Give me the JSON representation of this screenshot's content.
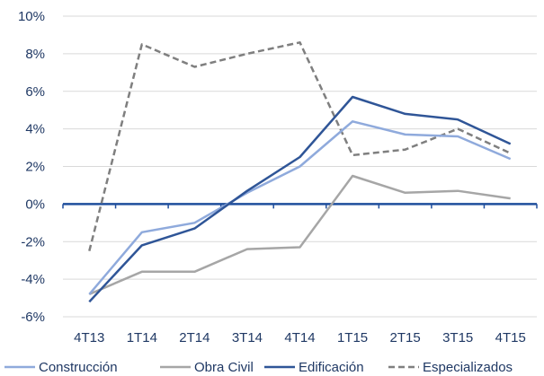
{
  "chart_data": {
    "type": "line",
    "title": "",
    "xlabel": "",
    "ylabel": "",
    "categories": [
      "4T13",
      "1T14",
      "2T14",
      "3T14",
      "4T14",
      "1T15",
      "2T15",
      "3T15",
      "4T15"
    ],
    "ylim": [
      -6,
      10
    ],
    "yticks": [
      -6,
      -4,
      -2,
      0,
      2,
      4,
      6,
      8,
      10
    ],
    "ytick_labels": [
      "-6%",
      "-4%",
      "-2%",
      "0%",
      "2%",
      "4%",
      "6%",
      "8%",
      "10%"
    ],
    "grid": true,
    "legend_position": "bottom",
    "series": [
      {
        "name": "Construcción",
        "color": "#8faadc",
        "dash": "solid",
        "values": [
          -4.8,
          -1.5,
          -1.0,
          0.6,
          2.0,
          4.4,
          3.7,
          3.6,
          2.4
        ]
      },
      {
        "name": "Obra Civil",
        "color": "#a6a6a6",
        "dash": "solid",
        "values": [
          -4.8,
          -3.6,
          -3.6,
          -2.4,
          -2.3,
          1.5,
          0.6,
          0.7,
          0.3
        ]
      },
      {
        "name": "Edificación",
        "color": "#2f5597",
        "dash": "solid",
        "values": [
          -5.2,
          -2.2,
          -1.3,
          0.7,
          2.5,
          5.7,
          4.8,
          4.5,
          3.2
        ]
      },
      {
        "name": "Especializados",
        "color": "#7f7f7f",
        "dash": "dashed",
        "values": [
          -2.5,
          8.5,
          7.3,
          8.0,
          8.6,
          2.6,
          2.9,
          4.0,
          2.7
        ]
      }
    ]
  }
}
